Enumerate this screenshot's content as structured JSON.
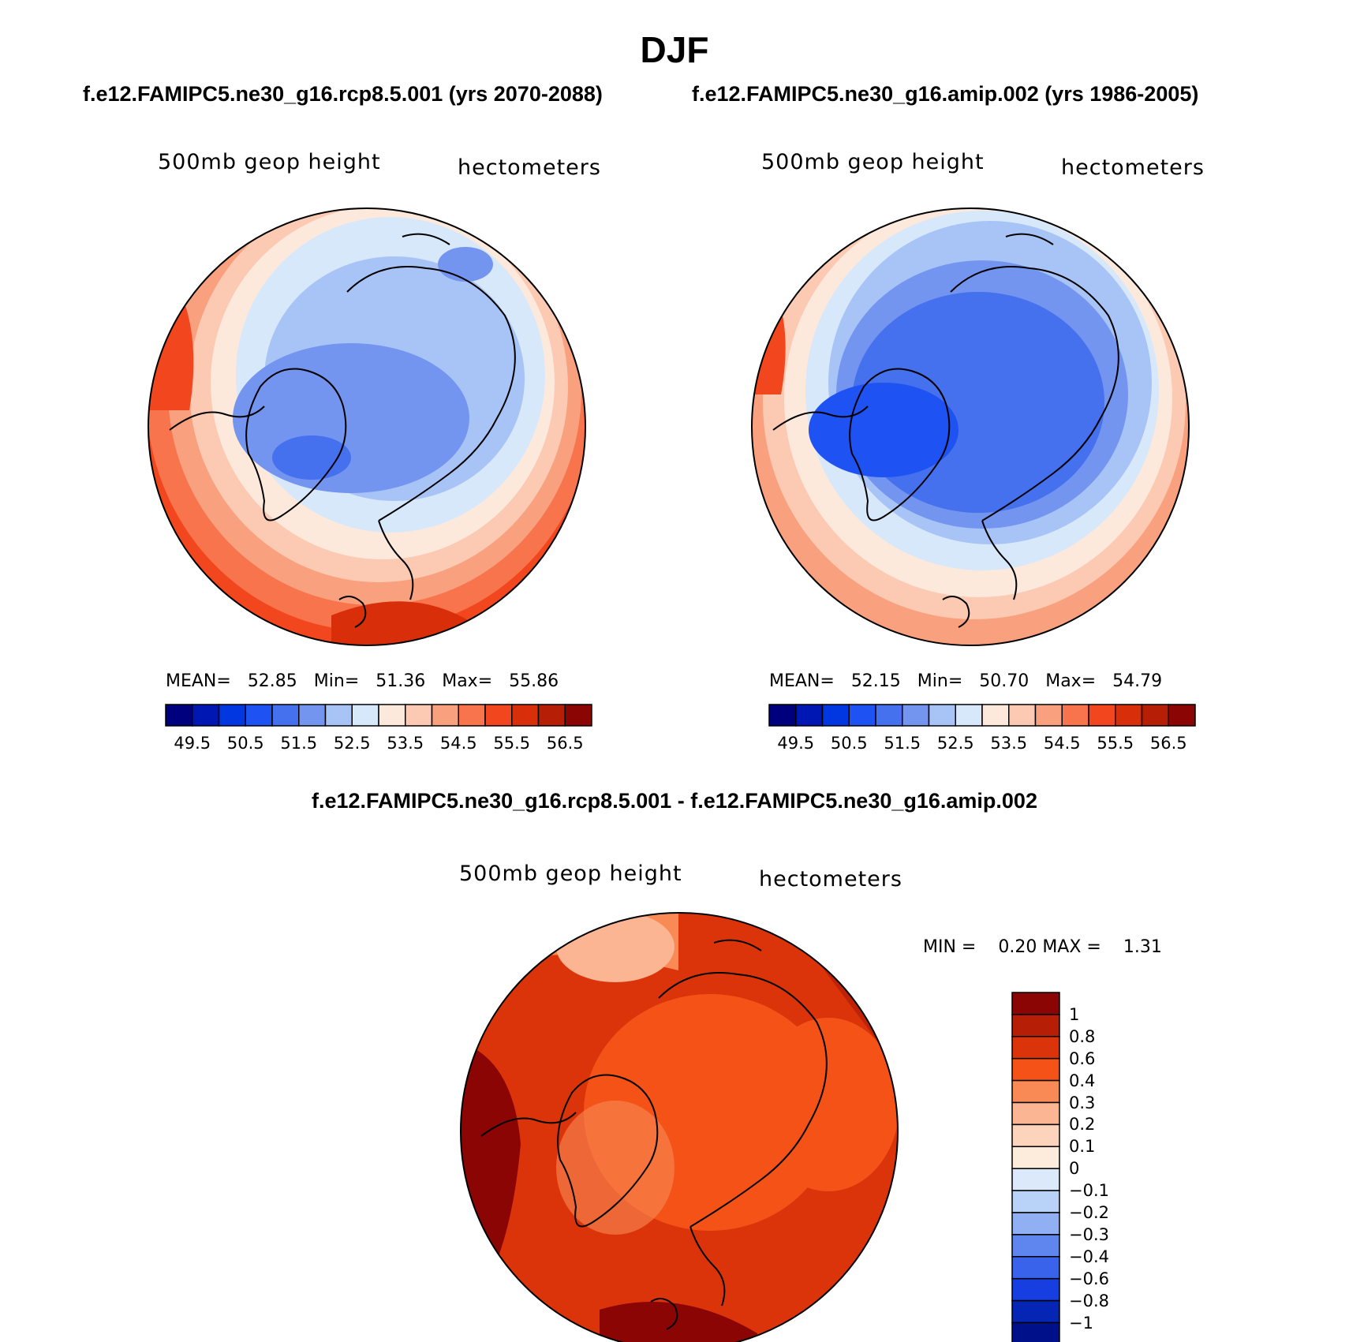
{
  "title": "DJF",
  "panels": [
    {
      "id": "rcp85",
      "subtitle": "f.e12.FAMIPC5.ne30_g16.rcp8.5.001 (yrs 2070-2088)",
      "variable": "500mb geop height",
      "units": "hectometers",
      "stats": {
        "mean_label": "MEAN=",
        "mean": "52.85",
        "min_label": "Min=",
        "min": "51.36",
        "max_label": "Max=",
        "max": "55.86"
      }
    },
    {
      "id": "amip",
      "subtitle": "f.e12.FAMIPC5.ne30_g16.amip.002 (yrs 1986-2005)",
      "variable": "500mb geop height",
      "units": "hectometers",
      "stats": {
        "mean_label": "MEAN=",
        "mean": "52.15",
        "min_label": "Min=",
        "min": "50.70",
        "max_label": "Max=",
        "max": "54.79"
      }
    }
  ],
  "field_colorbar": {
    "colors": [
      "#00007f",
      "#0017b4",
      "#0037e0",
      "#1f52f2",
      "#4570ee",
      "#7395ef",
      "#a8c4f6",
      "#d8e8fb",
      "#fde9dc",
      "#fcc9b3",
      "#f9a07f",
      "#f7744c",
      "#f2461e",
      "#d92e0a",
      "#b71e06",
      "#8b0505"
    ],
    "labels": [
      "49.5",
      "50.5",
      "51.5",
      "52.5",
      "53.5",
      "54.5",
      "55.5",
      "56.5"
    ]
  },
  "difference": {
    "title": "f.e12.FAMIPC5.ne30_g16.rcp8.5.001 - f.e12.FAMIPC5.ne30_g16.amip.002",
    "variable": "500mb geop height",
    "units": "hectometers",
    "min_label": "MIN =",
    "min": "0.20",
    "max_label": "MAX =",
    "max": "1.31",
    "colorbar": {
      "colors_top_to_bottom": [
        "#8b0505",
        "#b71e06",
        "#dc340a",
        "#f55218",
        "#f98a55",
        "#fbb592",
        "#fcd4bb",
        "#fdebdc",
        "#dbe9fb",
        "#b8d2f8",
        "#90b0f3",
        "#5f86ee",
        "#3a63ec",
        "#163ee0",
        "#0525b4",
        "#00108a"
      ],
      "labels_top_to_bottom": [
        "1",
        "0.8",
        "0.6",
        "0.4",
        "0.3",
        "0.2",
        "0.1",
        "0",
        "−0.1",
        "−0.2",
        "−0.3",
        "−0.4",
        "−0.6",
        "−0.8",
        "−1"
      ]
    }
  }
}
